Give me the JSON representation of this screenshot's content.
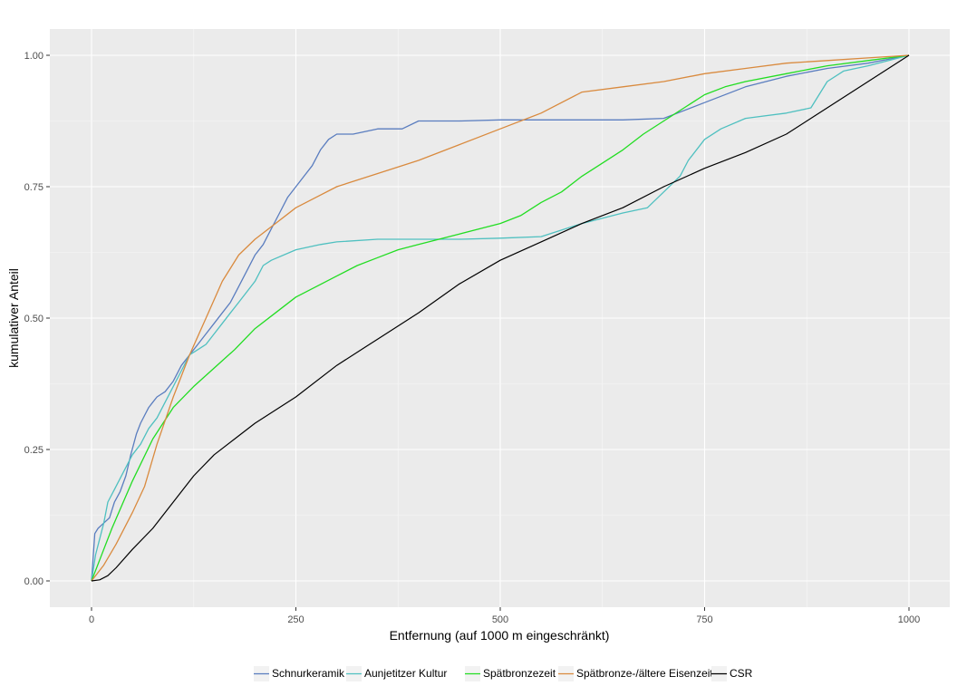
{
  "chart_data": {
    "type": "line",
    "title": "",
    "xlabel": "Entfernung (auf 1000 m eingeschränkt)",
    "ylabel": "kumulativer Anteil",
    "xlim": [
      0,
      1000
    ],
    "ylim": [
      0,
      1
    ],
    "x_ticks": [
      0,
      250,
      500,
      750,
      1000
    ],
    "x_tick_labels": [
      "0",
      "250",
      "500",
      "750",
      "1000"
    ],
    "y_ticks": [
      0,
      0.25,
      0.5,
      0.75,
      1
    ],
    "y_tick_labels": [
      "0.00",
      "0.25",
      "0.50",
      "0.75",
      "1.00"
    ],
    "grid": true,
    "legend_position": "bottom",
    "series": [
      {
        "name": "Schnurkeramik",
        "color": "#5a7dbf",
        "x": [
          0,
          4,
          8,
          15,
          22,
          28,
          35,
          42,
          48,
          55,
          60,
          70,
          75,
          80,
          90,
          100,
          110,
          120,
          130,
          140,
          150,
          160,
          170,
          180,
          190,
          200,
          210,
          220,
          230,
          240,
          250,
          260,
          270,
          280,
          290,
          300,
          320,
          350,
          380,
          400,
          430,
          450,
          500,
          550,
          600,
          650,
          700,
          750,
          800,
          850,
          900,
          950,
          1000
        ],
        "y": [
          0,
          0.09,
          0.1,
          0.11,
          0.12,
          0.15,
          0.17,
          0.2,
          0.24,
          0.28,
          0.3,
          0.33,
          0.34,
          0.35,
          0.36,
          0.38,
          0.41,
          0.43,
          0.45,
          0.47,
          0.49,
          0.51,
          0.53,
          0.56,
          0.59,
          0.62,
          0.64,
          0.67,
          0.7,
          0.73,
          0.75,
          0.77,
          0.79,
          0.82,
          0.84,
          0.85,
          0.85,
          0.86,
          0.86,
          0.875,
          0.875,
          0.875,
          0.877,
          0.877,
          0.877,
          0.877,
          0.88,
          0.91,
          0.94,
          0.96,
          0.975,
          0.985,
          1.0
        ]
      },
      {
        "name": "Aunjetitzer Kultur",
        "color": "#4fc0c0",
        "x": [
          0,
          5,
          10,
          15,
          20,
          30,
          40,
          50,
          60,
          70,
          80,
          90,
          100,
          110,
          120,
          130,
          140,
          150,
          160,
          170,
          180,
          190,
          200,
          210,
          220,
          250,
          280,
          300,
          350,
          400,
          450,
          500,
          550,
          600,
          650,
          680,
          700,
          720,
          730,
          750,
          770,
          800,
          850,
          880,
          900,
          920,
          950,
          1000
        ],
        "y": [
          0,
          0.05,
          0.08,
          0.11,
          0.15,
          0.18,
          0.21,
          0.24,
          0.26,
          0.29,
          0.31,
          0.34,
          0.37,
          0.4,
          0.43,
          0.44,
          0.45,
          0.47,
          0.49,
          0.51,
          0.53,
          0.55,
          0.57,
          0.6,
          0.61,
          0.63,
          0.64,
          0.645,
          0.65,
          0.65,
          0.65,
          0.652,
          0.655,
          0.68,
          0.7,
          0.71,
          0.74,
          0.77,
          0.8,
          0.84,
          0.86,
          0.88,
          0.89,
          0.9,
          0.95,
          0.97,
          0.98,
          1.0
        ]
      },
      {
        "name": "Spätbronzezeit",
        "color": "#22dd22",
        "x": [
          0,
          10,
          25,
          50,
          75,
          100,
          125,
          150,
          175,
          200,
          225,
          250,
          275,
          300,
          325,
          350,
          375,
          400,
          450,
          500,
          525,
          550,
          575,
          600,
          625,
          650,
          675,
          700,
          725,
          750,
          775,
          800,
          850,
          900,
          950,
          1000
        ],
        "y": [
          0,
          0.04,
          0.1,
          0.19,
          0.27,
          0.33,
          0.37,
          0.405,
          0.44,
          0.48,
          0.51,
          0.54,
          0.56,
          0.58,
          0.6,
          0.615,
          0.63,
          0.64,
          0.66,
          0.68,
          0.695,
          0.72,
          0.74,
          0.77,
          0.795,
          0.82,
          0.85,
          0.875,
          0.9,
          0.925,
          0.94,
          0.95,
          0.965,
          0.98,
          0.99,
          1.0
        ]
      },
      {
        "name": "Spätbronze-/ältere Eisenzeit",
        "color": "#d98a3e",
        "x": [
          0,
          15,
          30,
          50,
          65,
          80,
          100,
          120,
          140,
          160,
          180,
          200,
          225,
          250,
          275,
          300,
          350,
          400,
          450,
          500,
          550,
          600,
          650,
          700,
          750,
          800,
          850,
          900,
          950,
          1000
        ],
        "y": [
          0,
          0.03,
          0.07,
          0.13,
          0.18,
          0.26,
          0.35,
          0.43,
          0.5,
          0.57,
          0.62,
          0.65,
          0.68,
          0.71,
          0.73,
          0.75,
          0.775,
          0.8,
          0.83,
          0.86,
          0.89,
          0.93,
          0.94,
          0.95,
          0.965,
          0.975,
          0.985,
          0.99,
          0.995,
          1.0
        ]
      },
      {
        "name": "CSR",
        "color": "#000000",
        "x": [
          0,
          10,
          20,
          30,
          50,
          75,
          100,
          125,
          150,
          175,
          200,
          250,
          300,
          350,
          400,
          450,
          500,
          550,
          600,
          650,
          700,
          750,
          800,
          850,
          900,
          950,
          1000
        ],
        "y": [
          0,
          0.002,
          0.01,
          0.025,
          0.06,
          0.1,
          0.15,
          0.2,
          0.24,
          0.27,
          0.3,
          0.35,
          0.41,
          0.46,
          0.51,
          0.565,
          0.61,
          0.645,
          0.68,
          0.71,
          0.75,
          0.785,
          0.815,
          0.85,
          0.9,
          0.95,
          1.0
        ]
      }
    ]
  }
}
